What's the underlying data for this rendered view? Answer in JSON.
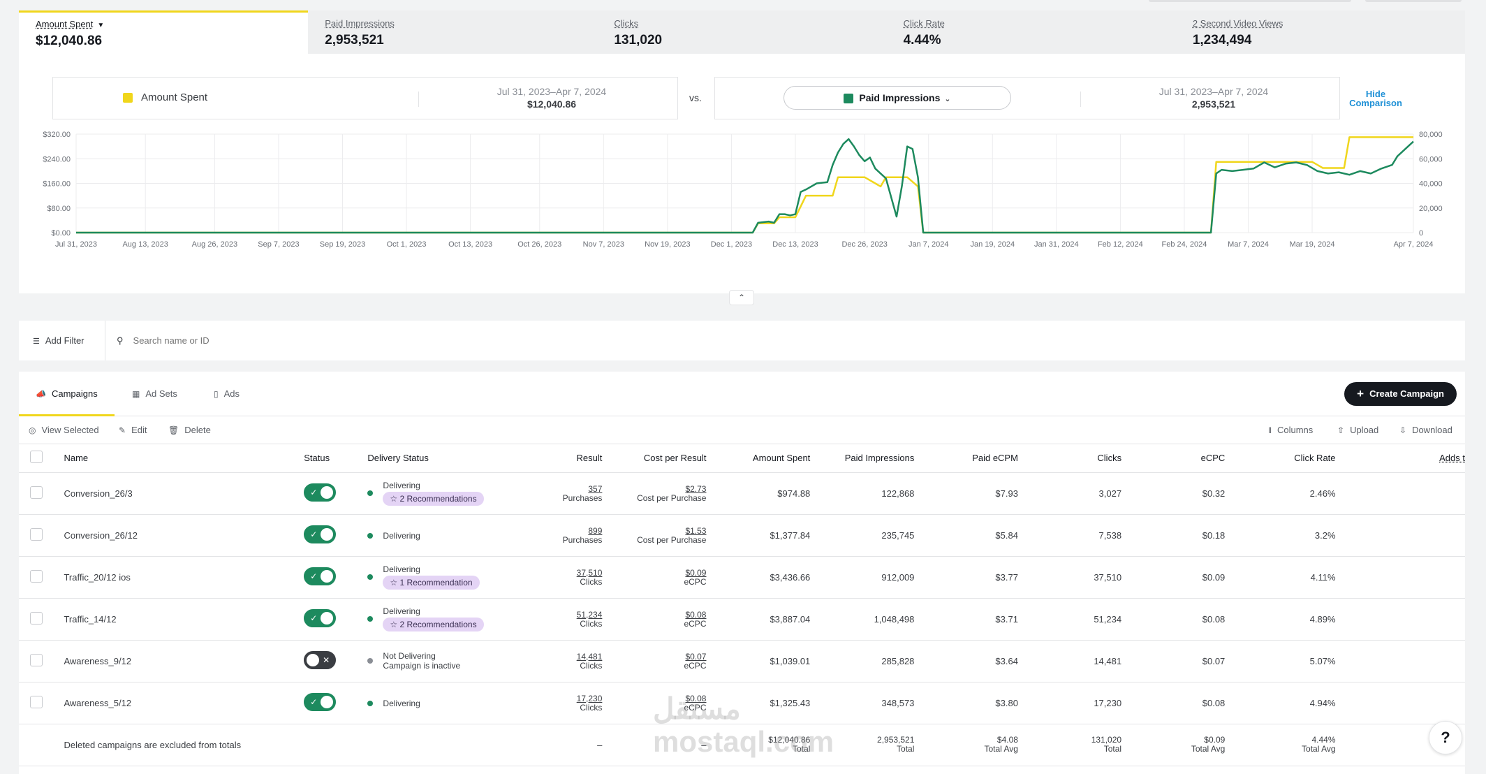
{
  "metrics": [
    {
      "label": "Amount Spent",
      "value": "$12,040.86",
      "active": true
    },
    {
      "label": "Paid Impressions",
      "value": "2,953,521"
    },
    {
      "label": "Clicks",
      "value": "131,020"
    },
    {
      "label": "Click Rate",
      "value": "4.44%"
    },
    {
      "label": "2 Second Video Views",
      "value": "1,234,494"
    }
  ],
  "comparison": {
    "left": {
      "metric": "Amount Spent",
      "dates": "Jul 31, 2023–Apr 7, 2024",
      "total": "$12,040.86",
      "color": "#f0d61c"
    },
    "vs": "vs.",
    "right": {
      "metric": "Paid Impressions",
      "dates": "Jul 31, 2023–Apr 7, 2024",
      "total": "2,953,521",
      "color": "#1d8a5e"
    },
    "hide_label_1": "Hide",
    "hide_label_2": "Comparison"
  },
  "chart_data": {
    "type": "line",
    "x_ticks": [
      "Jul 31, 2023",
      "Aug 13, 2023",
      "Aug 26, 2023",
      "Sep 7, 2023",
      "Sep 19, 2023",
      "Oct 1, 2023",
      "Oct 13, 2023",
      "Oct 26, 2023",
      "Nov 7, 2023",
      "Nov 19, 2023",
      "Dec 1, 2023",
      "Dec 13, 2023",
      "Dec 26, 2023",
      "Jan 7, 2024",
      "Jan 19, 2024",
      "Jan 31, 2024",
      "Feb 12, 2024",
      "Feb 24, 2024",
      "Mar 7, 2024",
      "Mar 19, 2024",
      "Apr 7, 2024"
    ],
    "y_left_ticks": [
      "$0.00",
      "$80.00",
      "$160.00",
      "$240.00",
      "$320.00"
    ],
    "y_left_lim": [
      0,
      320
    ],
    "y_right_ticks": [
      "0",
      "20,000",
      "40,000",
      "60,000",
      "80,000"
    ],
    "y_right_lim": [
      0,
      80000
    ],
    "grid": true,
    "series": [
      {
        "name": "Amount Spent",
        "axis": "left",
        "color": "#f0d61c",
        "x": [
          "2023-07-31",
          "2023-12-05",
          "2023-12-06",
          "2023-12-09",
          "2023-12-10",
          "2023-12-12",
          "2023-12-13",
          "2023-12-15",
          "2023-12-16",
          "2023-12-20",
          "2023-12-21",
          "2023-12-26",
          "2023-12-28",
          "2023-12-29",
          "2023-12-30",
          "2024-01-01",
          "2024-01-02",
          "2024-01-03",
          "2024-01-05",
          "2024-01-06",
          "2024-02-29",
          "2024-03-01",
          "2024-03-16",
          "2024-03-17",
          "2024-03-19",
          "2024-03-20",
          "2024-03-21",
          "2024-03-24",
          "2024-03-25",
          "2024-03-26",
          "2024-04-07"
        ],
        "y": [
          0,
          0,
          30,
          30,
          50,
          50,
          50,
          120,
          120,
          120,
          180,
          180,
          160,
          150,
          180,
          180,
          180,
          180,
          150,
          0,
          0,
          230,
          230,
          230,
          230,
          220,
          210,
          210,
          210,
          310,
          310
        ]
      },
      {
        "name": "Paid Impressions",
        "axis": "right",
        "color": "#1d8a5e",
        "x": [
          "2023-07-31",
          "2023-12-05",
          "2023-12-06",
          "2023-12-08",
          "2023-12-09",
          "2023-12-10",
          "2023-12-11",
          "2023-12-12",
          "2023-12-13",
          "2023-12-14",
          "2023-12-15",
          "2023-12-17",
          "2023-12-19",
          "2023-12-20",
          "2023-12-21",
          "2023-12-22",
          "2023-12-23",
          "2023-12-24",
          "2023-12-25",
          "2023-12-26",
          "2023-12-27",
          "2023-12-28",
          "2023-12-29",
          "2023-12-30",
          "2024-01-01",
          "2024-01-02",
          "2024-01-03",
          "2024-01-04",
          "2024-01-05",
          "2024-01-06",
          "2024-02-29",
          "2024-03-01",
          "2024-03-02",
          "2024-03-04",
          "2024-03-06",
          "2024-03-08",
          "2024-03-10",
          "2024-03-12",
          "2024-03-14",
          "2024-03-16",
          "2024-03-18",
          "2024-03-20",
          "2024-03-22",
          "2024-03-24",
          "2024-03-26",
          "2024-03-28",
          "2024-03-30",
          "2024-04-01",
          "2024-04-03",
          "2024-04-04",
          "2024-04-05",
          "2024-04-06",
          "2024-04-07"
        ],
        "y": [
          0,
          0,
          8000,
          9000,
          8000,
          15000,
          15000,
          14000,
          15000,
          33000,
          35000,
          40000,
          41000,
          55000,
          65000,
          72000,
          76000,
          70000,
          63000,
          58000,
          61000,
          52000,
          48000,
          44000,
          13000,
          38000,
          70000,
          68000,
          45000,
          0,
          0,
          48000,
          51000,
          50000,
          51000,
          52000,
          57000,
          53000,
          56000,
          57000,
          55000,
          50000,
          48000,
          49000,
          47000,
          50000,
          48000,
          52000,
          55000,
          62000,
          66000,
          70000,
          74000
        ]
      }
    ]
  },
  "filter": {
    "add_filter": "Add Filter",
    "search_placeholder": "Search name or ID"
  },
  "entity_tabs": [
    {
      "label": "Campaigns",
      "active": true
    },
    {
      "label": "Ad Sets"
    },
    {
      "label": "Ads"
    }
  ],
  "create_button": "Create Campaign",
  "actions": {
    "view_selected": "View Selected",
    "edit": "Edit",
    "delete": "Delete",
    "columns": "Columns",
    "upload": "Upload",
    "download": "Download"
  },
  "table": {
    "headers": [
      "Name",
      "Status",
      "Delivery Status",
      "Result",
      "Cost per Result",
      "Amount Spent",
      "Paid Impressions",
      "Paid eCPM",
      "Clicks",
      "eCPC",
      "Click Rate",
      "Adds t"
    ],
    "rows": [
      {
        "name": "Conversion_26/3",
        "on": true,
        "delivery": "Delivering",
        "delivery_sub": "",
        "badge": "2 Recommendations",
        "result": "357",
        "result_label": "Purchases",
        "cpr": "$2.73",
        "cpr_label": "Cost per Purchase",
        "spent": "$974.88",
        "impressions": "122,868",
        "ecpm": "$7.93",
        "clicks": "3,027",
        "ecpc": "$0.32",
        "ctr": "2.46%"
      },
      {
        "name": "Conversion_26/12",
        "on": true,
        "delivery": "Delivering",
        "delivery_sub": "",
        "badge": "",
        "result": "899",
        "result_label": "Purchases",
        "cpr": "$1.53",
        "cpr_label": "Cost per Purchase",
        "spent": "$1,377.84",
        "impressions": "235,745",
        "ecpm": "$5.84",
        "clicks": "7,538",
        "ecpc": "$0.18",
        "ctr": "3.2%"
      },
      {
        "name": "Traffic_20/12 ios",
        "on": true,
        "delivery": "Delivering",
        "delivery_sub": "",
        "badge": "1 Recommendation",
        "result": "37,510",
        "result_label": "Clicks",
        "cpr": "$0.09",
        "cpr_label": "eCPC",
        "spent": "$3,436.66",
        "impressions": "912,009",
        "ecpm": "$3.77",
        "clicks": "37,510",
        "ecpc": "$0.09",
        "ctr": "4.11%"
      },
      {
        "name": "Traffic_14/12",
        "on": true,
        "delivery": "Delivering",
        "delivery_sub": "",
        "badge": "2 Recommendations",
        "result": "51,234",
        "result_label": "Clicks",
        "cpr": "$0.08",
        "cpr_label": "eCPC",
        "spent": "$3,887.04",
        "impressions": "1,048,498",
        "ecpm": "$3.71",
        "clicks": "51,234",
        "ecpc": "$0.08",
        "ctr": "4.89%"
      },
      {
        "name": "Awareness_9/12",
        "on": false,
        "delivery": "Not Delivering",
        "delivery_sub": "Campaign is inactive",
        "badge": "",
        "result": "14,481",
        "result_label": "Clicks",
        "cpr": "$0.07",
        "cpr_label": "eCPC",
        "spent": "$1,039.01",
        "impressions": "285,828",
        "ecpm": "$3.64",
        "clicks": "14,481",
        "ecpc": "$0.07",
        "ctr": "5.07%"
      },
      {
        "name": "Awareness_5/12",
        "on": true,
        "delivery": "Delivering",
        "delivery_sub": "",
        "badge": "",
        "result": "17,230",
        "result_label": "Clicks",
        "cpr": "$0.08",
        "cpr_label": "eCPC",
        "spent": "$1,325.43",
        "impressions": "348,573",
        "ecpm": "$3.80",
        "clicks": "17,230",
        "ecpc": "$0.08",
        "ctr": "4.94%"
      }
    ],
    "totals": {
      "note": "Deleted campaigns are excluded from totals",
      "result": "–",
      "cpr": "–",
      "spent": "$12,040.86",
      "spent_label": "Total",
      "impressions": "2,953,521",
      "impressions_label": "Total",
      "ecpm": "$4.08",
      "ecpm_label": "Total Avg",
      "clicks": "131,020",
      "clicks_label": "Total",
      "ecpc": "$0.09",
      "ecpc_label": "Total Avg",
      "ctr": "4.44%",
      "ctr_label": "Total Avg"
    }
  },
  "watermark": {
    "line1": "مستقل",
    "line2": "mostaql.com"
  },
  "help_icon": "?"
}
